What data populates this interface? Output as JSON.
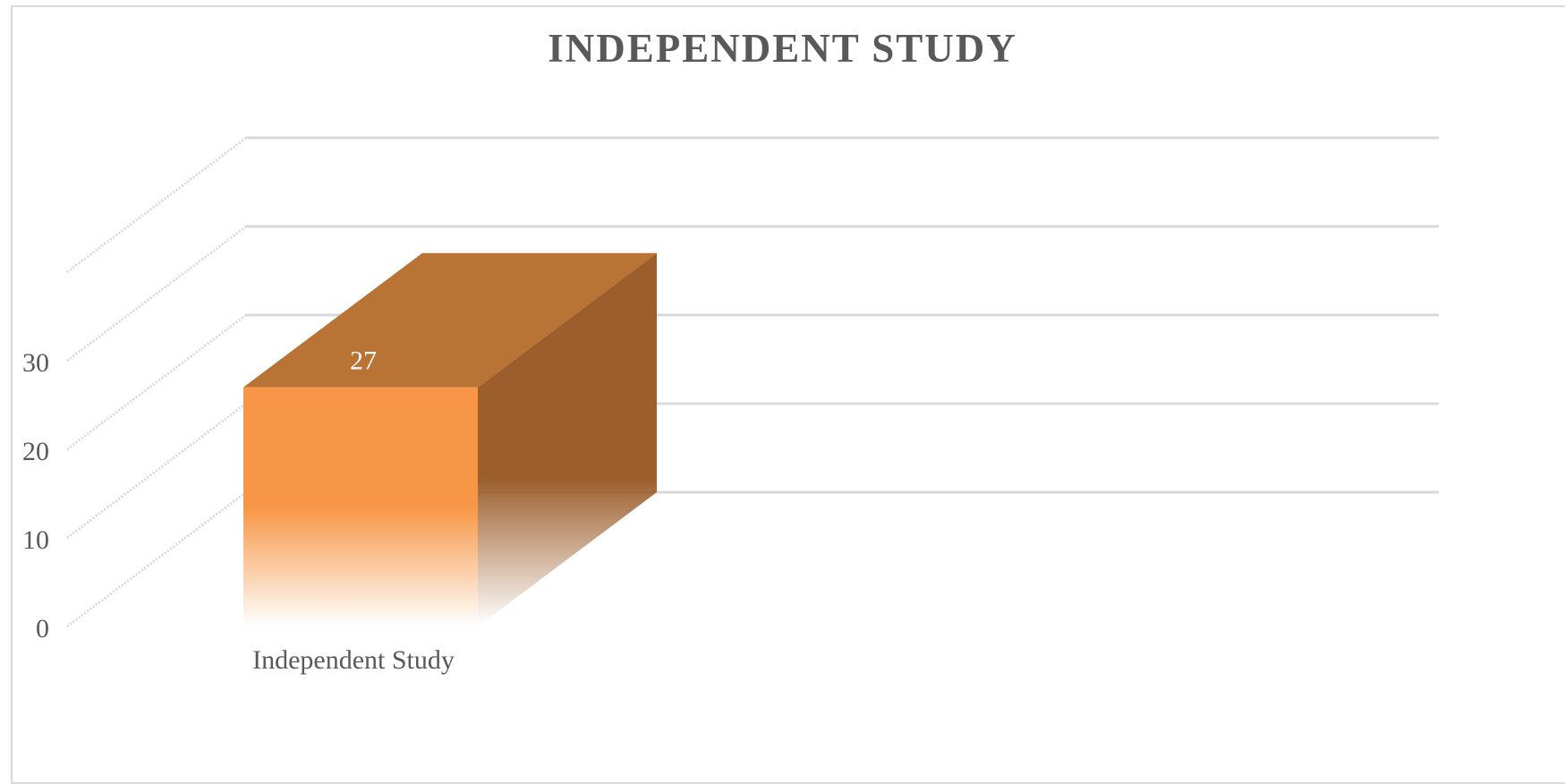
{
  "chart_data": {
    "type": "bar",
    "style": "3d-column",
    "title": "INDEPENDENT STUDY",
    "categories": [
      "Independent Study"
    ],
    "series": [
      {
        "values": [
          27
        ],
        "color": "#f79646"
      }
    ],
    "data_labels": [
      "27"
    ],
    "y_ticks": [
      "0",
      "10",
      "20",
      "30"
    ],
    "ylim": [
      0,
      40
    ],
    "grid": true,
    "xlabel": "",
    "ylabel": ""
  }
}
